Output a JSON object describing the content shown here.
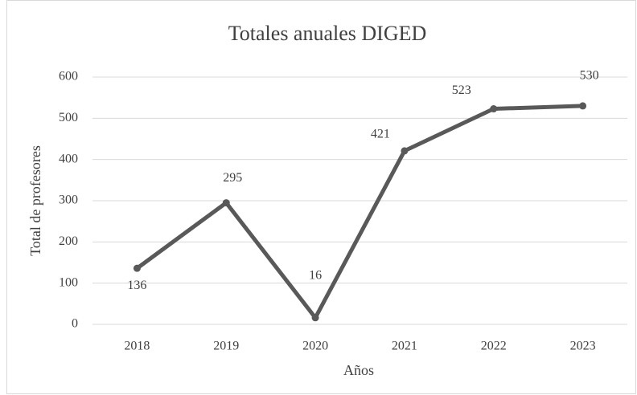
{
  "chart_data": {
    "type": "line",
    "title": "Totales anuales DIGED",
    "x_label": "Años",
    "y_label": "Total de profesores",
    "categories": [
      "2018",
      "2019",
      "2020",
      "2021",
      "2022",
      "2023"
    ],
    "values": [
      136,
      295,
      16,
      421,
      523,
      530
    ],
    "color": "#595959",
    "ylim": [
      0,
      600
    ],
    "yticks": [
      0,
      100,
      200,
      300,
      400,
      500,
      600
    ],
    "grid": true
  }
}
